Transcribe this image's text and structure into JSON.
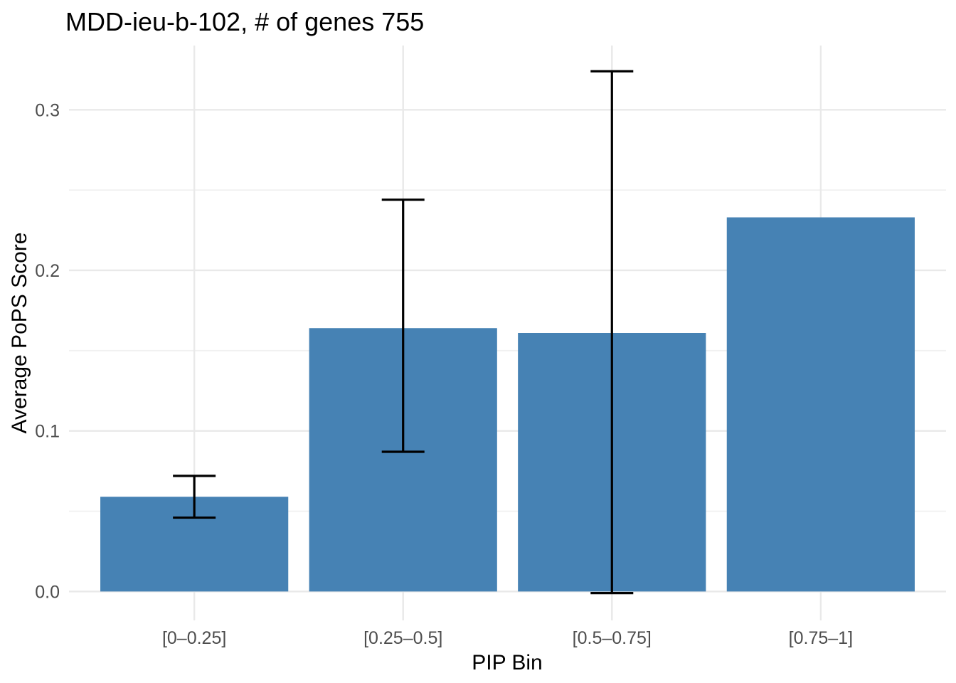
{
  "figure": {
    "background": "#ffffff"
  },
  "chart_data": {
    "type": "bar",
    "title": "MDD-ieu-b-102, # of genes 755",
    "xlabel": "PIP Bin",
    "ylabel": "Average PoPS Score",
    "categories": [
      "[0–0.25]",
      "[0.25–0.5]",
      "[0.5–0.75]",
      "[0.75–1]"
    ],
    "values": [
      0.059,
      0.164,
      0.161,
      0.233
    ],
    "error_low": [
      0.046,
      0.087,
      -0.001,
      null
    ],
    "error_high": [
      0.072,
      0.244,
      0.324,
      null
    ],
    "y_ticks": [
      0.0,
      0.1,
      0.2,
      0.3
    ],
    "y_tick_labels": [
      "0.0",
      "0.1",
      "0.2",
      "0.3"
    ],
    "y_minor_ticks": [
      0.05,
      0.15,
      0.25
    ],
    "ylim": [
      -0.018,
      0.34
    ],
    "grid": true,
    "legend": false,
    "colors": {
      "bar": "#4682b4",
      "errorbar": "#000000",
      "grid_major": "#e9e9e9",
      "grid_minor": "#f0f0f0",
      "tick_label": "#4d4d4d",
      "text": "#000000",
      "background": "#ffffff"
    }
  }
}
